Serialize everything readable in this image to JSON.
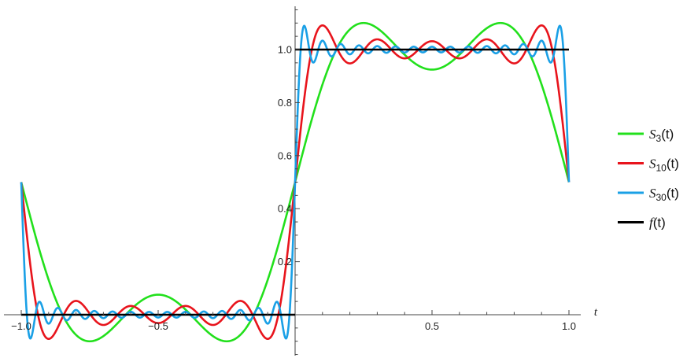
{
  "chart_data": {
    "type": "line",
    "title": "",
    "xlabel": "t",
    "ylabel": "",
    "xlim": [
      -1.05,
      1.05
    ],
    "ylim": [
      -0.17,
      1.17
    ],
    "x_ticks": [
      {
        "value": -1.0,
        "label": "−1.0"
      },
      {
        "value": -0.5,
        "label": "−0.5"
      },
      {
        "value": 0.5,
        "label": "0.5"
      },
      {
        "value": 1.0,
        "label": "1.0"
      }
    ],
    "y_ticks": [
      {
        "value": 0.2,
        "label": "0.2"
      },
      {
        "value": 0.4,
        "label": "0.4"
      },
      {
        "value": 0.6,
        "label": "0.6"
      },
      {
        "value": 0.8,
        "label": "0.8"
      },
      {
        "value": 1.0,
        "label": "1.0"
      }
    ],
    "legend_position": "right",
    "grid": false,
    "series": [
      {
        "name": "S3(t)",
        "legend_symbol": "S",
        "legend_sub": "3",
        "legend_arg": "(t)",
        "kind": "fourier_partial_sum",
        "terms": 3,
        "color": "#22e01c"
      },
      {
        "name": "S10(t)",
        "legend_symbol": "S",
        "legend_sub": "10",
        "legend_arg": "(t)",
        "kind": "fourier_partial_sum",
        "terms": 10,
        "color": "#e8141c"
      },
      {
        "name": "S30(t)",
        "legend_symbol": "S",
        "legend_sub": "30",
        "legend_arg": "(t)",
        "kind": "fourier_partial_sum",
        "terms": 30,
        "color": "#1aa0e6"
      },
      {
        "name": "f(t)",
        "legend_symbol": "f",
        "legend_sub": "",
        "legend_arg": "(t)",
        "kind": "square_wave",
        "low": 0,
        "high": 1,
        "color": "#000000"
      }
    ]
  }
}
